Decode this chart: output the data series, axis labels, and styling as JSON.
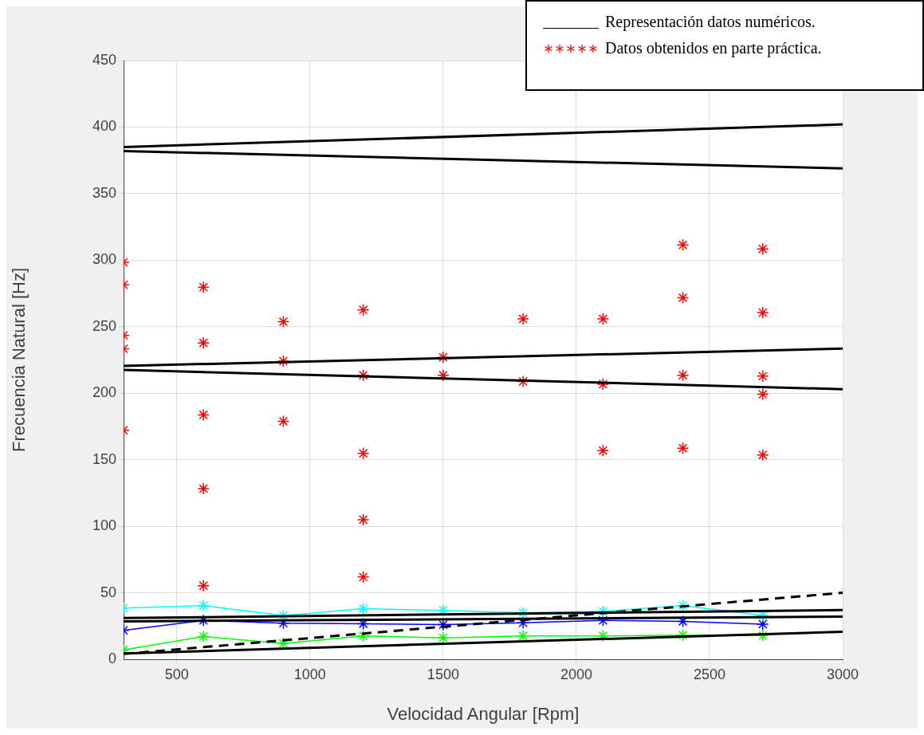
{
  "chart_data": {
    "type": "line",
    "xlabel": "Velocidad Angular [Rpm]",
    "ylabel": "Frecuencia Natural [Hz]",
    "xlim": [
      300,
      3000
    ],
    "xticks": [
      500,
      1000,
      1500,
      2000,
      2500,
      3000
    ],
    "ylim": [
      0,
      450
    ],
    "yticks": [
      0,
      50,
      100,
      150,
      200,
      250,
      300,
      350,
      400,
      450
    ],
    "grid": true,
    "legend": "top right",
    "series": [
      {
        "name": "Representación datos numéricos.",
        "color": "#000000",
        "marker": "none",
        "line_style": "solid",
        "x": [
          300,
          3000
        ],
        "values": [
          385,
          402
        ]
      },
      {
        "color": "#000000",
        "marker": "none",
        "line_style": "solid",
        "x": [
          300,
          3000
        ],
        "values": [
          382,
          369
        ]
      },
      {
        "color": "#000000",
        "marker": "none",
        "line_style": "solid",
        "x": [
          300,
          3000
        ],
        "values": [
          220.5,
          233.5
        ]
      },
      {
        "color": "#000000",
        "marker": "none",
        "line_style": "solid",
        "x": [
          300,
          3000
        ],
        "values": [
          217.5,
          203
        ]
      },
      {
        "color": "#000000",
        "marker": "none",
        "line_style": "solid",
        "x": [
          300,
          3000
        ],
        "values": [
          31,
          37
        ]
      },
      {
        "color": "#000000",
        "marker": "none",
        "line_style": "solid",
        "x": [
          300,
          3000
        ],
        "values": [
          28.5,
          32
        ]
      },
      {
        "color": "#000000",
        "marker": "none",
        "line_style": "solid",
        "x": [
          300,
          3000
        ],
        "values": [
          4.3,
          20.7
        ]
      },
      {
        "color": "#000000",
        "marker": "none",
        "line_style": "dashed",
        "x": [
          300,
          3000
        ],
        "values": [
          4,
          50
        ]
      },
      {
        "color": "#00ffff",
        "marker": "cross",
        "line_style": "solid",
        "x": [
          300,
          600,
          900,
          1200,
          1500,
          1800,
          2100,
          2400,
          2700
        ],
        "values": [
          38.5,
          40.3,
          32.8,
          38.1,
          36.7,
          34.9,
          36,
          40.3,
          33
        ]
      },
      {
        "color": "#0000ff",
        "marker": "cross",
        "line_style": "solid",
        "x": [
          300,
          600,
          900,
          1200,
          1500,
          1800,
          2100,
          2400,
          2700
        ],
        "values": [
          21.7,
          29.2,
          27.1,
          26.7,
          26,
          27.4,
          29.2,
          28.5,
          26.4
        ]
      },
      {
        "color": "#00ff00",
        "marker": "cross",
        "line_style": "solid",
        "x": [
          300,
          600,
          900,
          1200,
          1500,
          1800,
          2100,
          2400,
          2700
        ],
        "values": [
          7.1,
          17.1,
          11.8,
          17.5,
          16.1,
          17.5,
          17.5,
          18.2,
          17.8
        ]
      },
      {
        "name": "Datos obtenidos en parte práctica.",
        "type": "scatter",
        "color": "#ff0000",
        "marker": "cross",
        "x": [
          300,
          300,
          300,
          300,
          300,
          600,
          600,
          600,
          600,
          600,
          900,
          900,
          900,
          1200,
          1200,
          1200,
          1200,
          1200,
          1500,
          1500,
          1800,
          1800,
          2100,
          2100,
          2100,
          2400,
          2400,
          2400,
          2400,
          2700,
          2700,
          2700,
          2700,
          2700
        ],
        "values": [
          298.4,
          281.5,
          243.4,
          233.4,
          172.1,
          279.7,
          237.7,
          183.6,
          128.2,
          55.3,
          253.7,
          224.1,
          178.9,
          262.6,
          213.5,
          154.7,
          104.9,
          61.8,
          227,
          213.5,
          255.8,
          208.8,
          255.8,
          206.7,
          156.9,
          311.4,
          271.8,
          213.5,
          158.7,
          308.5,
          260.5,
          212.8,
          199.2,
          153.6
        ]
      }
    ]
  }
}
